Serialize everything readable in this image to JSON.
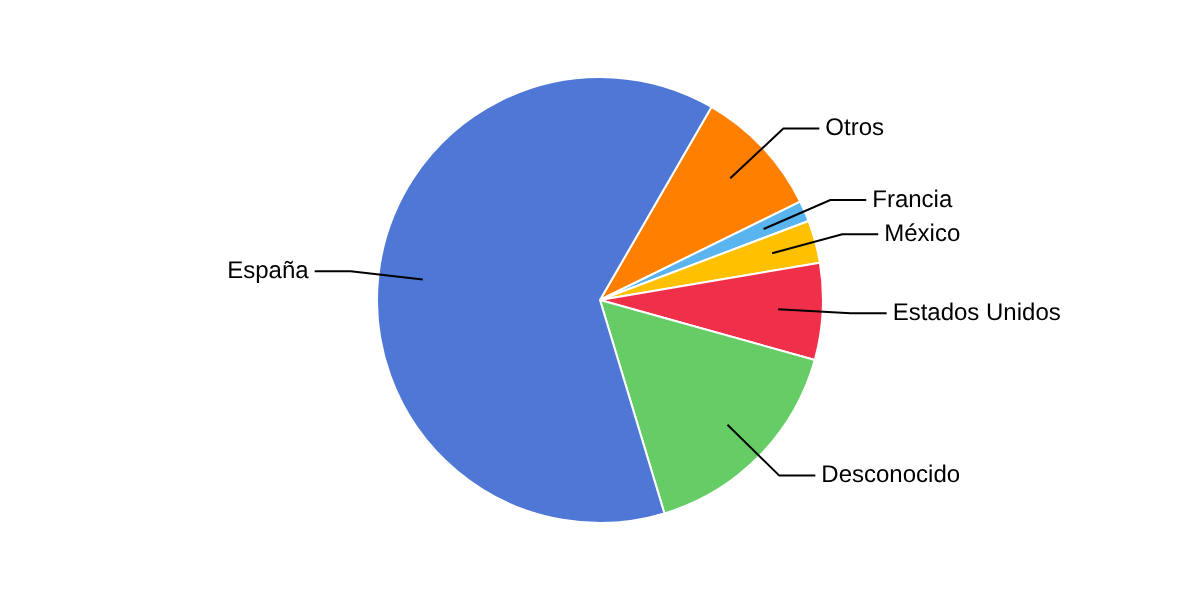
{
  "chart_data": {
    "type": "pie",
    "categories": [
      "Otros",
      "Francia",
      "México",
      "Estados Unidos",
      "Desconocido",
      "España"
    ],
    "values": [
      9.4,
      1.5,
      3.1,
      7,
      16,
      63
    ],
    "colors": [
      "#ff7f00",
      "#5ab4f0",
      "#ffc000",
      "#f0304a",
      "#66cc66",
      "#4f77d6"
    ],
    "legend": false
  }
}
